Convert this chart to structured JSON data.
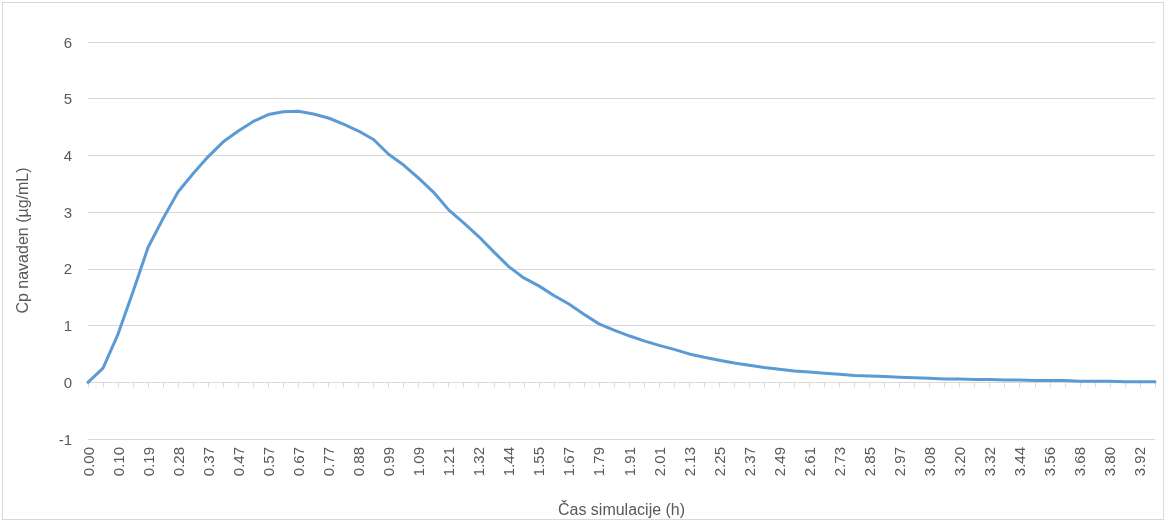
{
  "chart_data": {
    "type": "line",
    "xlabel": "Čas simulacije (h)",
    "ylabel": "Cp navaden (µg/mL)",
    "categories": [
      "0.00",
      null,
      "0.10",
      null,
      "0.19",
      null,
      "0.28",
      null,
      "0.37",
      null,
      "0.47",
      null,
      "0.57",
      null,
      "0.67",
      null,
      "0.77",
      null,
      "0.88",
      null,
      "0.99",
      null,
      "1.09",
      null,
      "1.21",
      null,
      "1.32",
      null,
      "1.44",
      null,
      "1.55",
      null,
      "1.67",
      null,
      "1.79",
      null,
      "1.91",
      null,
      "2.01",
      null,
      "2.13",
      null,
      "2.25",
      null,
      "2.37",
      null,
      "2.49",
      null,
      "2.61",
      null,
      "2.73",
      null,
      "2.85",
      null,
      "2.97",
      null,
      "3.08",
      null,
      "3.20",
      null,
      "3.32",
      null,
      "3.44",
      null,
      "3.56",
      null,
      "3.68",
      null,
      "3.80",
      null,
      "3.92",
      null
    ],
    "series": [
      {
        "color": "#5b9bd5",
        "values": [
          0,
          0.25,
          0.85,
          1.6,
          2.38,
          2.89,
          3.36,
          3.68,
          3.98,
          4.24,
          4.43,
          4.6,
          4.72,
          4.77,
          4.78,
          4.73,
          4.66,
          4.55,
          4.43,
          4.28,
          4.02,
          3.83,
          3.6,
          3.35,
          3.04,
          2.81,
          2.57,
          2.3,
          2.04,
          1.84,
          1.7,
          1.53,
          1.38,
          1.2,
          1.03,
          0.92,
          0.82,
          0.73,
          0.65,
          0.58,
          0.5,
          0.44,
          0.39,
          0.34,
          0.3,
          0.26,
          0.23,
          0.2,
          0.18,
          0.16,
          0.14,
          0.12,
          0.11,
          0.1,
          0.09,
          0.08,
          0.07,
          0.06,
          0.06,
          0.05,
          0.05,
          0.04,
          0.04,
          0.03,
          0.03,
          0.03,
          0.02,
          0.02,
          0.02,
          0.01,
          0.01,
          0.01
        ]
      }
    ],
    "ylim": [
      -1,
      6
    ],
    "yticks": [
      -1,
      0,
      1,
      2,
      3,
      4,
      5,
      6
    ],
    "grid": "y",
    "marker": "none",
    "line_style": "solid"
  }
}
